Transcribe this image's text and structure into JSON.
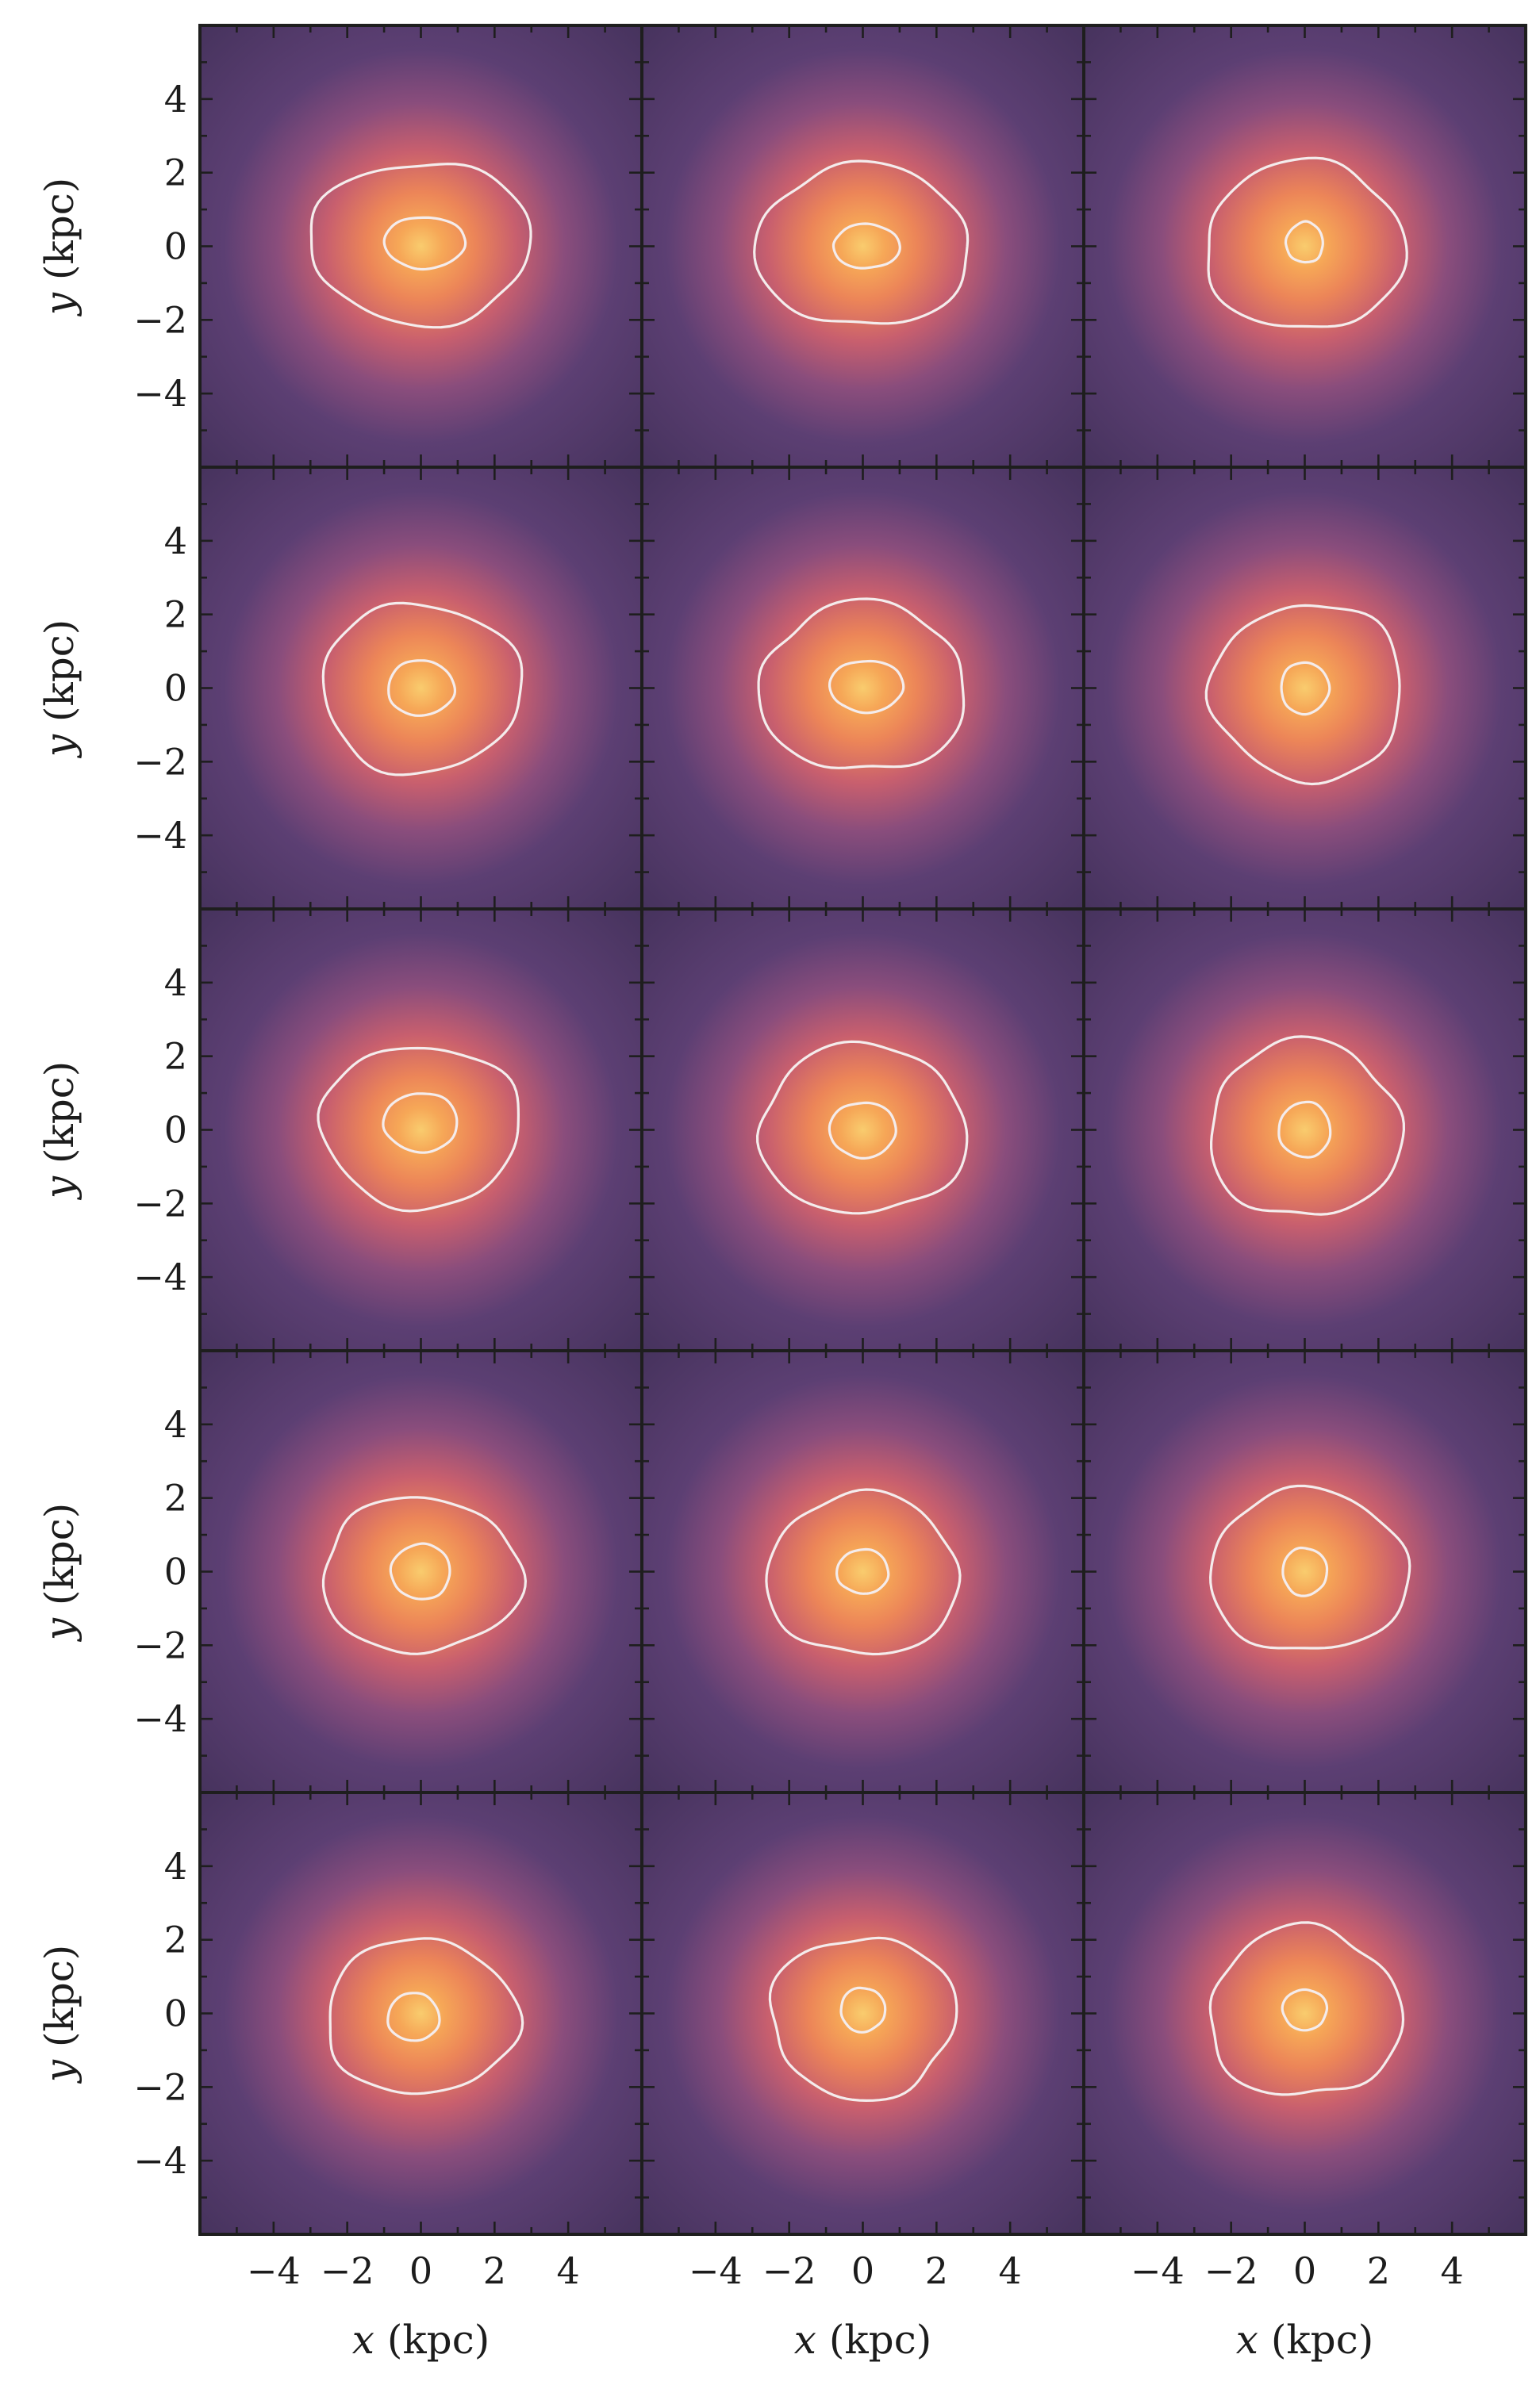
{
  "chart_data": {
    "type": "heatmap",
    "layout": {
      "rows": 5,
      "cols": 3,
      "shared_x": true,
      "shared_y": true
    },
    "xlabel_var": "x",
    "xlabel_unit": " (kpc)",
    "ylabel_var": "y",
    "ylabel_unit": " (kpc)",
    "xlim": [
      -6,
      6
    ],
    "ylim": [
      -6,
      6
    ],
    "xticks": [
      -4,
      -2,
      0,
      2,
      4
    ],
    "yticks": [
      -4,
      -2,
      0,
      2,
      4
    ],
    "xticklabels": [
      "−4",
      "−2",
      "0",
      "2",
      "4"
    ],
    "yticklabels": [
      "−4",
      "−2",
      "0",
      "2",
      "4"
    ],
    "minor_tick_step": 1,
    "colormap": {
      "name": "magma-like",
      "stops": [
        "#45325c",
        "#5c3f73",
        "#8a4d7c",
        "#c85f6e",
        "#ec8558",
        "#f6a757",
        "#f9cc6e"
      ]
    },
    "contour_color": "#f4ecec",
    "grid": false,
    "panels": [
      {
        "row": 0,
        "col": 0,
        "outer_contour": {
          "center": [
            0.0,
            0.1
          ],
          "rx": 3.0,
          "ry": 2.2,
          "wobble": 0.07,
          "seed": 1
        },
        "inner_contour": {
          "center": [
            0.1,
            0.1
          ],
          "rx": 1.1,
          "ry": 0.7,
          "wobble": 0.04,
          "seed": 2
        }
      },
      {
        "row": 0,
        "col": 1,
        "outer_contour": {
          "center": [
            0.0,
            0.0
          ],
          "rx": 2.9,
          "ry": 2.2,
          "wobble": 0.07,
          "seed": 3
        },
        "inner_contour": {
          "center": [
            0.1,
            0.0
          ],
          "rx": 0.9,
          "ry": 0.6,
          "wobble": 0.04,
          "seed": 4
        }
      },
      {
        "row": 0,
        "col": 2,
        "outer_contour": {
          "center": [
            0.0,
            0.0
          ],
          "rx": 2.7,
          "ry": 2.3,
          "wobble": 0.07,
          "seed": 5
        },
        "inner_contour": {
          "center": [
            0.0,
            0.1
          ],
          "rx": 0.5,
          "ry": 0.55,
          "wobble": 0.06,
          "seed": 6
        }
      },
      {
        "row": 1,
        "col": 0,
        "outer_contour": {
          "center": [
            0.0,
            0.0
          ],
          "rx": 2.7,
          "ry": 2.3,
          "wobble": 0.07,
          "seed": 7
        },
        "inner_contour": {
          "center": [
            0.0,
            0.0
          ],
          "rx": 0.9,
          "ry": 0.75,
          "wobble": 0.04,
          "seed": 8
        }
      },
      {
        "row": 1,
        "col": 1,
        "outer_contour": {
          "center": [
            0.0,
            0.0
          ],
          "rx": 2.8,
          "ry": 2.3,
          "wobble": 0.08,
          "seed": 9
        },
        "inner_contour": {
          "center": [
            0.1,
            0.05
          ],
          "rx": 1.0,
          "ry": 0.7,
          "wobble": 0.04,
          "seed": 10
        }
      },
      {
        "row": 1,
        "col": 2,
        "outer_contour": {
          "center": [
            0.1,
            -0.1
          ],
          "rx": 2.6,
          "ry": 2.4,
          "wobble": 0.08,
          "seed": 11
        },
        "inner_contour": {
          "center": [
            0.0,
            0.0
          ],
          "rx": 0.65,
          "ry": 0.7,
          "wobble": 0.04,
          "seed": 12
        }
      },
      {
        "row": 2,
        "col": 0,
        "outer_contour": {
          "center": [
            0.0,
            0.1
          ],
          "rx": 2.7,
          "ry": 2.2,
          "wobble": 0.07,
          "seed": 13
        },
        "inner_contour": {
          "center": [
            0.0,
            0.2
          ],
          "rx": 1.0,
          "ry": 0.8,
          "wobble": 0.04,
          "seed": 14
        }
      },
      {
        "row": 2,
        "col": 1,
        "outer_contour": {
          "center": [
            0.0,
            0.0
          ],
          "rx": 2.8,
          "ry": 2.3,
          "wobble": 0.07,
          "seed": 15
        },
        "inner_contour": {
          "center": [
            0.0,
            0.0
          ],
          "rx": 0.9,
          "ry": 0.75,
          "wobble": 0.04,
          "seed": 16
        }
      },
      {
        "row": 2,
        "col": 2,
        "outer_contour": {
          "center": [
            0.0,
            0.0
          ],
          "rx": 2.6,
          "ry": 2.4,
          "wobble": 0.08,
          "seed": 17
        },
        "inner_contour": {
          "center": [
            0.0,
            0.0
          ],
          "rx": 0.7,
          "ry": 0.75,
          "wobble": 0.04,
          "seed": 18
        }
      },
      {
        "row": 3,
        "col": 0,
        "outer_contour": {
          "center": [
            0.0,
            -0.1
          ],
          "rx": 2.7,
          "ry": 2.1,
          "wobble": 0.07,
          "seed": 19
        },
        "inner_contour": {
          "center": [
            0.0,
            0.0
          ],
          "rx": 0.8,
          "ry": 0.75,
          "wobble": 0.04,
          "seed": 20
        }
      },
      {
        "row": 3,
        "col": 1,
        "outer_contour": {
          "center": [
            0.0,
            -0.1
          ],
          "rx": 2.6,
          "ry": 2.2,
          "wobble": 0.07,
          "seed": 21
        },
        "inner_contour": {
          "center": [
            0.0,
            0.0
          ],
          "rx": 0.7,
          "ry": 0.6,
          "wobble": 0.04,
          "seed": 22
        }
      },
      {
        "row": 3,
        "col": 2,
        "outer_contour": {
          "center": [
            0.1,
            0.0
          ],
          "rx": 2.7,
          "ry": 2.2,
          "wobble": 0.07,
          "seed": 23
        },
        "inner_contour": {
          "center": [
            0.0,
            0.0
          ],
          "rx": 0.6,
          "ry": 0.65,
          "wobble": 0.04,
          "seed": 24
        }
      },
      {
        "row": 4,
        "col": 0,
        "outer_contour": {
          "center": [
            0.0,
            -0.1
          ],
          "rx": 2.6,
          "ry": 2.1,
          "wobble": 0.07,
          "seed": 25
        },
        "inner_contour": {
          "center": [
            -0.2,
            -0.1
          ],
          "rx": 0.7,
          "ry": 0.65,
          "wobble": 0.04,
          "seed": 26
        }
      },
      {
        "row": 4,
        "col": 1,
        "outer_contour": {
          "center": [
            0.0,
            -0.1
          ],
          "rx": 2.5,
          "ry": 2.2,
          "wobble": 0.08,
          "seed": 27
        },
        "inner_contour": {
          "center": [
            0.0,
            0.1
          ],
          "rx": 0.6,
          "ry": 0.6,
          "wobble": 0.04,
          "seed": 28
        }
      },
      {
        "row": 4,
        "col": 2,
        "outer_contour": {
          "center": [
            0.0,
            0.0
          ],
          "rx": 2.6,
          "ry": 2.3,
          "wobble": 0.09,
          "seed": 29
        },
        "inner_contour": {
          "center": [
            0.0,
            0.1
          ],
          "rx": 0.6,
          "ry": 0.55,
          "wobble": 0.04,
          "seed": 30
        }
      }
    ]
  }
}
